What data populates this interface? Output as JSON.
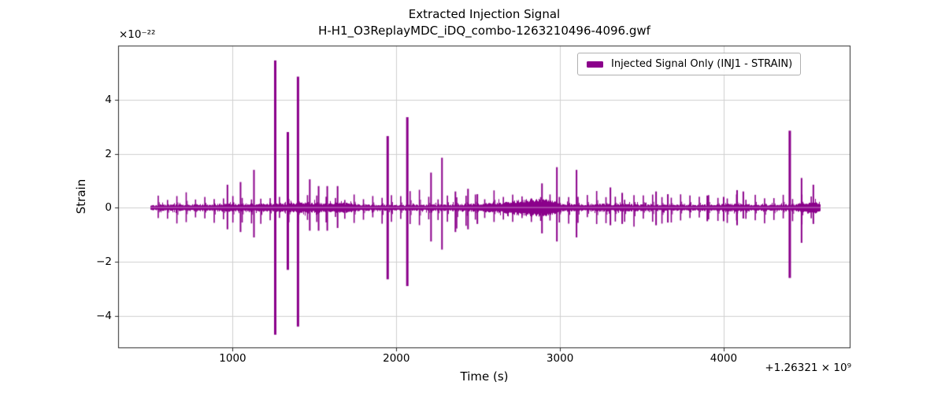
{
  "figure": {
    "title_line1": "Extracted Injection Signal",
    "title_line2": "H-H1_O3ReplayMDC_iDQ_combo-1263210496-4096.gwf",
    "background": "#ffffff"
  },
  "axes": {
    "xlabel": "Time (s)",
    "ylabel": "Strain",
    "x_offset_label": "+1.26321 × 10⁹",
    "y_offset_label": "×10⁻²²",
    "spine_color": "#2a2a2a",
    "grid_color": "#d0d0d0",
    "tick_color": "#2a2a2a"
  },
  "legend": {
    "label": "Injected Signal Only (INJ1 - STRAIN)",
    "swatch_color": "#8B008B",
    "border_color": "#b0b0b0"
  },
  "chart_data": {
    "type": "line",
    "title": "Extracted Injection Signal",
    "subtitle": "H-H1_O3ReplayMDC_iDQ_combo-1263210496-4096.gwf",
    "xlabel": "Time (s)",
    "ylabel": "Strain",
    "x_offset_value": 1263210000,
    "y_scale": 1e-22,
    "xlim": [
      300,
      4775
    ],
    "ylim": [
      -5.2,
      6.0
    ],
    "xticks": [
      1000,
      2000,
      3000,
      4000
    ],
    "xticklabels": [
      "1000",
      "2000",
      "3000",
      "4000"
    ],
    "yticks": [
      4,
      2,
      0,
      -2,
      -4
    ],
    "yticklabels": [
      "4",
      "2",
      "0",
      "−2",
      "−4"
    ],
    "grid": true,
    "legend_position": "upper right",
    "series": [
      {
        "name": "Injected Signal Only (INJ1 - STRAIN)",
        "color": "#8B008B",
        "t_start": 496,
        "t_end": 4592,
        "baseline_envelope": [
          [
            496,
            0.07
          ],
          [
            560,
            0.1
          ],
          [
            700,
            0.1
          ],
          [
            900,
            0.11
          ],
          [
            1100,
            0.13
          ],
          [
            1210,
            0.12
          ],
          [
            1320,
            0.14
          ],
          [
            1430,
            0.19
          ],
          [
            1490,
            0.15
          ],
          [
            1560,
            0.13
          ],
          [
            1650,
            0.16
          ],
          [
            1720,
            0.14
          ],
          [
            1780,
            0.1
          ],
          [
            1950,
            0.09
          ],
          [
            2150,
            0.09
          ],
          [
            2300,
            0.1
          ],
          [
            2450,
            0.12
          ],
          [
            2600,
            0.16
          ],
          [
            2700,
            0.21
          ],
          [
            2790,
            0.26
          ],
          [
            2880,
            0.29
          ],
          [
            2950,
            0.24
          ],
          [
            3010,
            0.13
          ],
          [
            3120,
            0.11
          ],
          [
            3250,
            0.12
          ],
          [
            3420,
            0.11
          ],
          [
            3600,
            0.1
          ],
          [
            3780,
            0.09
          ],
          [
            3950,
            0.1
          ],
          [
            4060,
            0.13
          ],
          [
            4160,
            0.11
          ],
          [
            4280,
            0.1
          ],
          [
            4400,
            0.11
          ],
          [
            4500,
            0.13
          ],
          [
            4555,
            0.18
          ],
          [
            4592,
            0.14
          ]
        ],
        "minor_spikes": {
          "t_start": 545,
          "t_end": 4555,
          "period_s": 57,
          "up_amp_range": [
            0.28,
            0.5
          ],
          "down_amp_range": [
            0.34,
            0.6
          ]
        },
        "major_spikes": [
          [
            968,
            0.85,
            -0.8
          ],
          [
            1048,
            0.95,
            -0.9
          ],
          [
            1130,
            1.4,
            -1.1
          ],
          [
            1260,
            5.45,
            -4.7
          ],
          [
            1337,
            2.8,
            -2.3
          ],
          [
            1399,
            4.85,
            -4.4
          ],
          [
            1471,
            1.05,
            -0.85
          ],
          [
            1525,
            0.8,
            -0.85
          ],
          [
            1578,
            0.8,
            -0.85
          ],
          [
            1641,
            0.8,
            -0.75
          ],
          [
            1947,
            2.65,
            -2.65
          ],
          [
            2067,
            3.35,
            -2.9
          ],
          [
            2212,
            1.3,
            -1.25
          ],
          [
            2279,
            1.85,
            -1.55
          ],
          [
            2361,
            0.6,
            -0.9
          ],
          [
            2438,
            0.7,
            -0.8
          ],
          [
            2495,
            0.5,
            -0.6
          ],
          [
            2890,
            0.9,
            -0.95
          ],
          [
            2981,
            1.5,
            -1.25
          ],
          [
            3101,
            1.4,
            -1.1
          ],
          [
            3308,
            0.75,
            -0.65
          ],
          [
            3380,
            0.55,
            -0.6
          ],
          [
            3587,
            0.6,
            -0.65
          ],
          [
            3659,
            0.5,
            -0.55
          ],
          [
            3900,
            0.45,
            -0.5
          ],
          [
            4000,
            0.4,
            -0.5
          ],
          [
            4082,
            0.65,
            -0.65
          ],
          [
            4120,
            0.6,
            -0.4
          ],
          [
            4404,
            2.85,
            -2.6
          ],
          [
            4476,
            1.1,
            -1.3
          ],
          [
            4548,
            0.85,
            -0.6
          ]
        ]
      }
    ]
  }
}
